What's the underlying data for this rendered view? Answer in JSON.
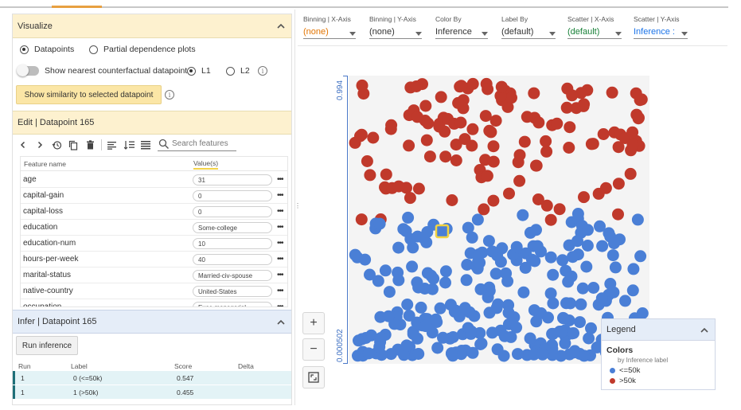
{
  "visualize": {
    "title": "Visualize",
    "radio_datapoints": "Datapoints",
    "radio_pdp": "Partial dependence plots",
    "toggle_label": "Show nearest counterfactual datapoint",
    "l1": "L1",
    "l2": "L2",
    "similarity_button": "Show similarity to selected datapoint"
  },
  "edit": {
    "title": "Edit | Datapoint 165",
    "search_placeholder": "Search features",
    "col_feature": "Feature name",
    "col_value": "Value(s)",
    "features": [
      {
        "name": "age",
        "value": "31"
      },
      {
        "name": "capital-gain",
        "value": "0"
      },
      {
        "name": "capital-loss",
        "value": "0"
      },
      {
        "name": "education",
        "value": "Some-college"
      },
      {
        "name": "education-num",
        "value": "10"
      },
      {
        "name": "hours-per-week",
        "value": "40"
      },
      {
        "name": "marital-status",
        "value": "Married-civ-spouse"
      },
      {
        "name": "native-country",
        "value": "United-States"
      },
      {
        "name": "occupation",
        "value": "Exec-managerial"
      }
    ]
  },
  "infer": {
    "title": "Infer | Datapoint 165",
    "run_button": "Run inference",
    "headers": {
      "run": "Run",
      "label": "Label",
      "score": "Score",
      "delta": "Delta"
    },
    "rows": [
      {
        "run": "1",
        "label": "0 (<=50k)",
        "score": "0.547",
        "delta": ""
      },
      {
        "run": "1",
        "label": "1 (>50k)",
        "score": "0.455",
        "delta": ""
      }
    ]
  },
  "controls": [
    {
      "label": "Binning | X-Axis",
      "value": "(none)",
      "color": "#e37400"
    },
    {
      "label": "Binning | Y-Axis",
      "value": "(none)",
      "color": "#333333"
    },
    {
      "label": "Color By",
      "value": "Inference",
      "color": "#333333"
    },
    {
      "label": "Label By",
      "value": "(default)",
      "color": "#333333"
    },
    {
      "label": "Scatter | X-Axis",
      "value": "(default)",
      "color": "#188038"
    },
    {
      "label": "Scatter | Y-Axis",
      "value": "Inference :",
      "color": "#1a73e8"
    }
  ],
  "plot": {
    "y_max_label": "0.994",
    "y_min_label": "0.000502"
  },
  "legend": {
    "title": "Legend",
    "section": "Colors",
    "subtitle": "by Inference label",
    "items": [
      {
        "label": "<=50k",
        "color": "#4a7fd6"
      },
      {
        "label": ">50k",
        "color": "#c0392b"
      }
    ]
  },
  "colors": {
    "blue": "#4a7fd6",
    "red": "#c0392b",
    "selected": "#f2d341"
  }
}
